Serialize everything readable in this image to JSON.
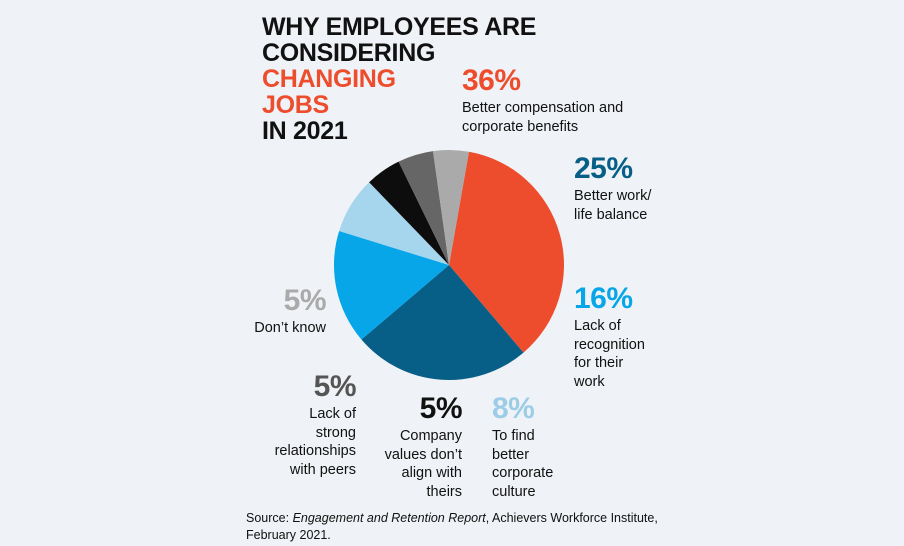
{
  "title": {
    "line1": "WHY EMPLOYEES ARE",
    "line2": "CONSIDERING",
    "line3": "CHANGING",
    "line4": "JOBS",
    "line5": "IN 2021"
  },
  "chart_data": {
    "type": "pie",
    "slices": [
      {
        "label_lines": [
          "Better compensation and",
          "corporate benefits"
        ],
        "value": 36,
        "pct_text": "36%",
        "color": "#ee4d2d",
        "label_color": "#ee4d2d"
      },
      {
        "label_lines": [
          "Better work/",
          "life balance"
        ],
        "value": 25,
        "pct_text": "25%",
        "color": "#075f87",
        "label_color": "#075f87"
      },
      {
        "label_lines": [
          "Lack of",
          "recognition",
          "for their",
          "work"
        ],
        "value": 16,
        "pct_text": "16%",
        "color": "#07a6e8",
        "label_color": "#07a6e8"
      },
      {
        "label_lines": [
          "To find",
          "better",
          "corporate",
          "culture"
        ],
        "value": 8,
        "pct_text": "8%",
        "color": "#a6d6ee",
        "label_color": "#9dcde6"
      },
      {
        "label_lines": [
          "Company",
          "values don’t",
          "align with",
          "theirs"
        ],
        "value": 5,
        "pct_text": "5%",
        "color": "#0d0d0d",
        "label_color": "#111111"
      },
      {
        "label_lines": [
          "Lack of",
          "strong",
          "relationships",
          "with peers"
        ],
        "value": 5,
        "pct_text": "5%",
        "color": "#666666",
        "label_color": "#555555"
      },
      {
        "label_lines": [
          "Don’t know"
        ],
        "value": 5,
        "pct_text": "5%",
        "color": "#aaaaaa",
        "label_color": "#aaaaaa"
      }
    ]
  },
  "source": {
    "prefix": "Source: ",
    "report": "Engagement and Retention Report",
    "suffix": ", Achievers Workforce Institute,",
    "line2": "February 2021."
  }
}
